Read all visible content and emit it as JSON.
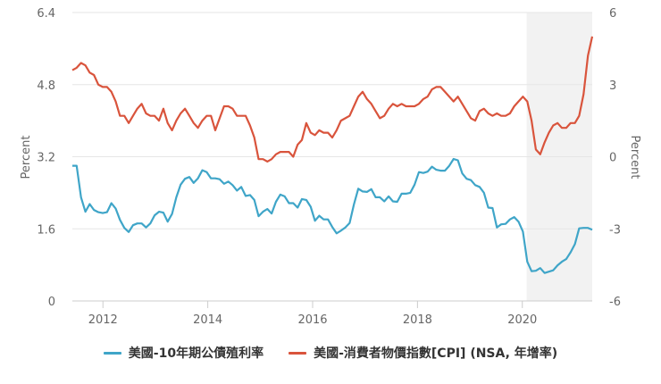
{
  "chart_data": {
    "type": "line",
    "title": "",
    "x_label": "",
    "y_left_label": "Percent",
    "y_right_label": "Percent",
    "y_left_range": [
      0,
      6.4
    ],
    "y_left_ticks": [
      "0",
      "1.6",
      "3.2",
      "4.8",
      "6.4"
    ],
    "y_right_range": [
      -6,
      6
    ],
    "y_right_ticks": [
      "-6",
      "-3",
      "0",
      "3",
      "6"
    ],
    "x_ticks": [
      "2012",
      "2014",
      "2016",
      "2018",
      "2020"
    ],
    "x_start": "2011-06",
    "x_end": "2021-05",
    "grid": true,
    "legend_position": "bottom",
    "shaded_region": {
      "from": "2020-02",
      "to": "2021-05",
      "color": "#f2f2f2"
    },
    "series": [
      {
        "name": "美國-10年期公債殖利率",
        "axis": "left",
        "color": "#3fa5c8",
        "values": [
          3.0,
          3.0,
          2.3,
          1.98,
          2.15,
          2.02,
          1.97,
          1.95,
          1.97,
          2.17,
          2.05,
          1.8,
          1.62,
          1.53,
          1.68,
          1.72,
          1.72,
          1.63,
          1.72,
          1.9,
          1.98,
          1.96,
          1.76,
          1.93,
          2.3,
          2.58,
          2.71,
          2.75,
          2.62,
          2.72,
          2.9,
          2.86,
          2.72,
          2.72,
          2.7,
          2.6,
          2.65,
          2.57,
          2.45,
          2.53,
          2.33,
          2.35,
          2.24,
          1.88,
          1.98,
          2.04,
          1.94,
          2.2,
          2.36,
          2.32,
          2.17,
          2.17,
          2.07,
          2.26,
          2.24,
          2.09,
          1.78,
          1.89,
          1.81,
          1.81,
          1.64,
          1.5,
          1.56,
          1.63,
          1.73,
          2.14,
          2.49,
          2.43,
          2.42,
          2.48,
          2.3,
          2.3,
          2.21,
          2.32,
          2.21,
          2.2,
          2.38,
          2.38,
          2.4,
          2.58,
          2.86,
          2.84,
          2.87,
          2.98,
          2.91,
          2.89,
          2.89,
          3.0,
          3.15,
          3.12,
          2.83,
          2.71,
          2.68,
          2.57,
          2.53,
          2.4,
          2.07,
          2.06,
          1.63,
          1.7,
          1.71,
          1.81,
          1.86,
          1.76,
          1.54,
          0.87,
          0.66,
          0.67,
          0.73,
          0.62,
          0.65,
          0.68,
          0.79,
          0.87,
          0.93,
          1.08,
          1.26,
          1.61,
          1.62,
          1.62,
          1.58
        ]
      },
      {
        "name": "美國-消費者物價指數[CPI] (NSA, 年增率)",
        "axis": "right",
        "color": "#d9543c",
        "values": [
          3.6,
          3.7,
          3.9,
          3.8,
          3.5,
          3.4,
          3.0,
          2.9,
          2.9,
          2.7,
          2.3,
          1.7,
          1.7,
          1.4,
          1.7,
          2.0,
          2.2,
          1.8,
          1.7,
          1.7,
          1.5,
          2.0,
          1.4,
          1.1,
          1.5,
          1.8,
          2.0,
          1.7,
          1.4,
          1.2,
          1.5,
          1.7,
          1.7,
          1.1,
          1.6,
          2.1,
          2.1,
          2.0,
          1.7,
          1.7,
          1.7,
          1.3,
          0.8,
          -0.1,
          -0.1,
          -0.2,
          -0.1,
          0.1,
          0.2,
          0.2,
          0.2,
          0.0,
          0.5,
          0.7,
          1.4,
          1.0,
          0.9,
          1.1,
          1.0,
          1.0,
          0.8,
          1.1,
          1.5,
          1.6,
          1.7,
          2.1,
          2.5,
          2.7,
          2.4,
          2.2,
          1.9,
          1.6,
          1.7,
          2.0,
          2.2,
          2.1,
          2.2,
          2.1,
          2.1,
          2.1,
          2.2,
          2.4,
          2.5,
          2.8,
          2.9,
          2.9,
          2.7,
          2.5,
          2.3,
          2.5,
          2.2,
          1.9,
          1.6,
          1.5,
          1.9,
          2.0,
          1.8,
          1.7,
          1.8,
          1.7,
          1.7,
          1.8,
          2.1,
          2.3,
          2.5,
          2.3,
          1.5,
          0.3,
          0.1,
          0.6,
          1.0,
          1.3,
          1.4,
          1.2,
          1.2,
          1.4,
          1.4,
          1.7,
          2.6,
          4.2,
          5.0
        ]
      }
    ]
  },
  "legend": {
    "items": [
      {
        "label": "美國-10年期公債殖利率",
        "color": "#3fa5c8"
      },
      {
        "label": "美國-消費者物價指數[CPI] (NSA, 年增率)",
        "color": "#d9543c"
      }
    ]
  }
}
